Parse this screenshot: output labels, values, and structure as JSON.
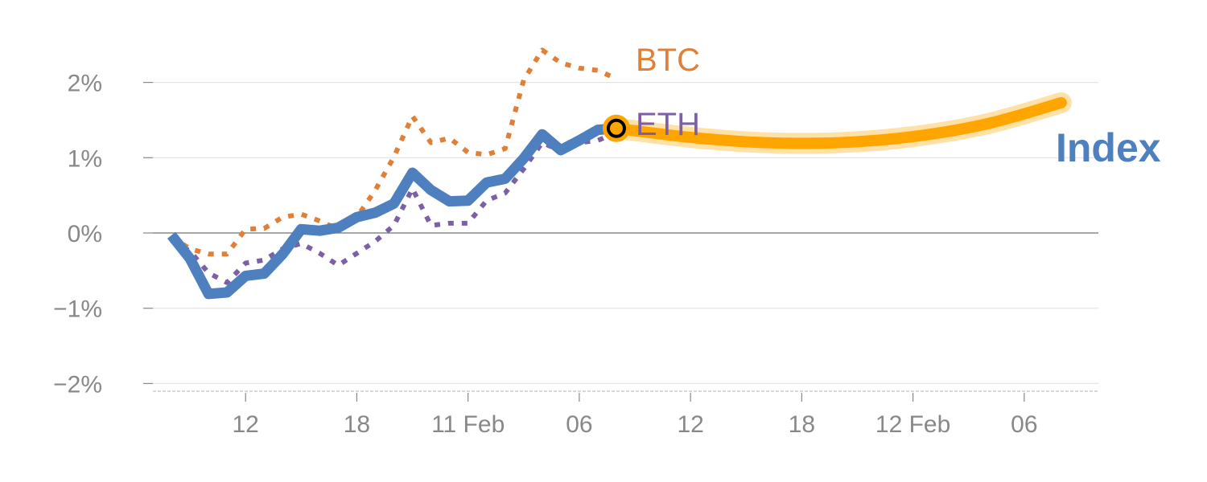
{
  "chart_data": {
    "type": "line",
    "title": "",
    "xlabel": "",
    "ylabel": "",
    "ylim": [
      -2.1,
      2.6
    ],
    "xlim": [
      -1,
      50
    ],
    "grid": true,
    "y_ticks": [
      {
        "v": 2,
        "label": "2%"
      },
      {
        "v": 1,
        "label": "1%"
      },
      {
        "v": 0,
        "label": "0%"
      },
      {
        "v": -1,
        "label": "−1%"
      },
      {
        "v": -2,
        "label": "−2%"
      }
    ],
    "x_ticks": [
      {
        "v": 4,
        "label": "12"
      },
      {
        "v": 10,
        "label": "18"
      },
      {
        "v": 16,
        "label": "11 Feb"
      },
      {
        "v": 22,
        "label": "06"
      },
      {
        "v": 28,
        "label": "12"
      },
      {
        "v": 34,
        "label": "18"
      },
      {
        "v": 40,
        "label": "12 Feb"
      },
      {
        "v": 46,
        "label": "06"
      }
    ],
    "series": [
      {
        "name": "BTC",
        "color": "#E07F35",
        "style": "dotted",
        "values": [
          -0.05,
          -0.21,
          -0.28,
          -0.28,
          0.05,
          0.06,
          0.21,
          0.25,
          0.16,
          0.05,
          0.21,
          0.57,
          1.01,
          1.55,
          1.2,
          1.26,
          1.07,
          1.04,
          1.12,
          2.03,
          2.43,
          2.26,
          2.19,
          2.16,
          2.05
        ]
      },
      {
        "name": "ETH",
        "color": "#7D5FA6",
        "style": "dotted",
        "values": [
          -0.1,
          -0.24,
          -0.53,
          -0.66,
          -0.4,
          -0.36,
          -0.21,
          -0.14,
          -0.27,
          -0.43,
          -0.27,
          -0.11,
          0.1,
          0.59,
          0.1,
          0.13,
          0.13,
          0.43,
          0.53,
          0.85,
          1.2,
          1.09,
          1.2,
          1.23,
          1.33
        ]
      },
      {
        "name": "Index",
        "color": "#4E7FBF",
        "style": "solid",
        "values": [
          -0.03,
          -0.34,
          -0.81,
          -0.79,
          -0.57,
          -0.54,
          -0.28,
          0.05,
          0.03,
          0.07,
          0.21,
          0.27,
          0.39,
          0.8,
          0.57,
          0.42,
          0.43,
          0.67,
          0.72,
          0.99,
          1.31,
          1.1,
          1.23,
          1.37,
          1.39
        ]
      }
    ],
    "forecast": {
      "color": "#FFA500",
      "x": [
        24,
        28,
        32,
        36,
        40,
        44,
        48
      ],
      "values": [
        1.39,
        1.27,
        1.2,
        1.2,
        1.28,
        1.45,
        1.73
      ]
    },
    "labels": {
      "btc": "BTC",
      "eth": "ETH",
      "index": "Index"
    }
  }
}
